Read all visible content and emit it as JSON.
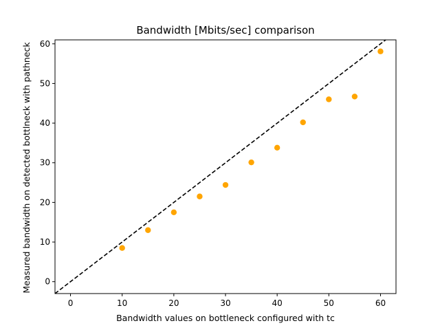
{
  "chart_data": {
    "type": "scatter",
    "title": "Bandwidth [Mbits/sec] comparison",
    "xlabel": "Bandwidth values on bottleneck configured with tc",
    "ylabel": "Measured bandwidth on detected bottlneck with pathneck",
    "xlim": [
      -3,
      63
    ],
    "ylim": [
      -3,
      61
    ],
    "xticks": [
      0,
      10,
      20,
      30,
      40,
      50,
      60
    ],
    "yticks": [
      0,
      10,
      20,
      30,
      40,
      50,
      60
    ],
    "grid": false,
    "series": [
      {
        "color": "#ffa500",
        "x": [
          10,
          15,
          20,
          25,
          30,
          35,
          40,
          45,
          50,
          55,
          60
        ],
        "y": [
          8.5,
          13.0,
          17.5,
          21.5,
          24.4,
          30.1,
          33.8,
          40.2,
          46.0,
          46.7,
          58.1
        ]
      }
    ],
    "reference_line": {
      "style": "dashed",
      "color": "#000000",
      "x": [
        -3,
        63
      ],
      "y": [
        -3,
        63
      ]
    }
  }
}
